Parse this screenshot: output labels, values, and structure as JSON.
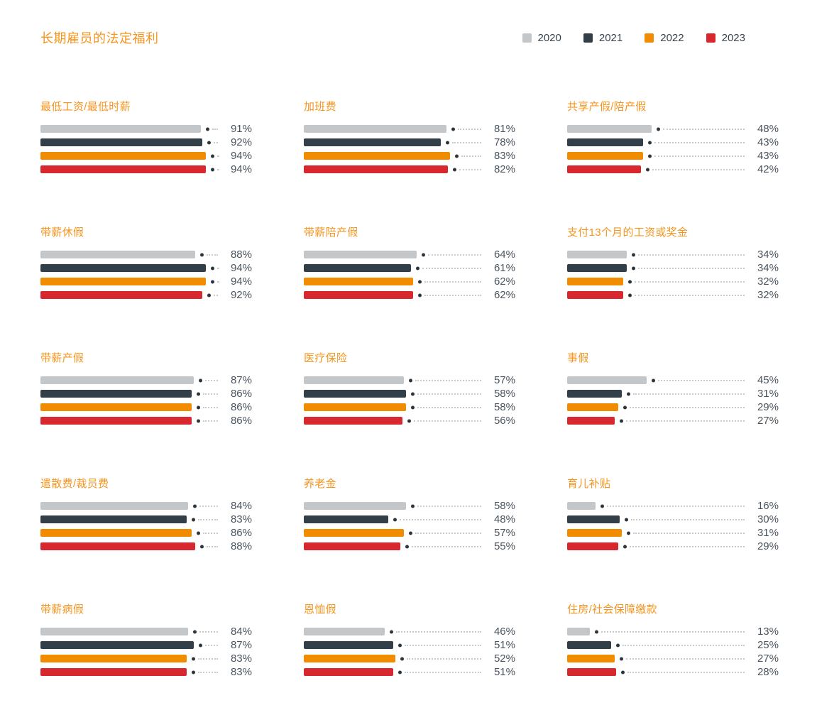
{
  "header": {
    "title": "长期雇员的法定福利"
  },
  "legend": {
    "items": [
      {
        "label": "2020",
        "color": "#c4c7c9"
      },
      {
        "label": "2021",
        "color": "#323e48"
      },
      {
        "label": "2022",
        "color": "#f18b00"
      },
      {
        "label": "2023",
        "color": "#d7282f"
      }
    ]
  },
  "colors": {
    "title_orange": "#f5941e",
    "value_text": "#4a545e",
    "dot": "#2b363f",
    "leader": "#c9cbcd",
    "background": "#ffffff"
  },
  "chart_data": {
    "type": "bar",
    "orientation": "horizontal",
    "title": "长期雇员的法定福利",
    "unit": "%",
    "xlim": [
      0,
      100
    ],
    "grid": false,
    "legend_position": "top-right",
    "series_years": [
      "2020",
      "2021",
      "2022",
      "2023"
    ],
    "panels": [
      {
        "title": "最低工资/最低时薪",
        "values": [
          91,
          92,
          94,
          94
        ],
        "labels": [
          "91%",
          "92%",
          "94%",
          "94%"
        ]
      },
      {
        "title": "加班费",
        "values": [
          81,
          78,
          83,
          82
        ],
        "labels": [
          "81%",
          "78%",
          "83%",
          "82%"
        ]
      },
      {
        "title": "共享产假/陪产假",
        "values": [
          48,
          43,
          43,
          42
        ],
        "labels": [
          "48%",
          "43%",
          "43%",
          "42%"
        ]
      },
      {
        "title": "带薪休假",
        "values": [
          88,
          94,
          94,
          92
        ],
        "labels": [
          "88%",
          "94%",
          "94%",
          "92%"
        ]
      },
      {
        "title": "带薪陪产假",
        "values": [
          64,
          61,
          62,
          62
        ],
        "labels": [
          "64%",
          "61%",
          "62%",
          "62%"
        ]
      },
      {
        "title": "支付13个月的工资或奖金",
        "values": [
          34,
          34,
          32,
          32
        ],
        "labels": [
          "34%",
          "34%",
          "32%",
          "32%"
        ]
      },
      {
        "title": "带薪产假",
        "values": [
          87,
          86,
          86,
          86
        ],
        "labels": [
          "87%",
          "86%",
          "86%",
          "86%"
        ]
      },
      {
        "title": "医疗保险",
        "values": [
          57,
          58,
          58,
          56
        ],
        "labels": [
          "57%",
          "58%",
          "58%",
          "56%"
        ]
      },
      {
        "title": "事假",
        "values": [
          45,
          31,
          29,
          27
        ],
        "labels": [
          "45%",
          "31%",
          "29%",
          "27%"
        ]
      },
      {
        "title": "遣散费/裁员费",
        "values": [
          84,
          83,
          86,
          88
        ],
        "labels": [
          "84%",
          "83%",
          "86%",
          "88%"
        ]
      },
      {
        "title": "养老金",
        "values": [
          58,
          48,
          57,
          55
        ],
        "labels": [
          "58%",
          "48%",
          "57%",
          "55%"
        ]
      },
      {
        "title": "育儿补贴",
        "values": [
          16,
          30,
          31,
          29
        ],
        "labels": [
          "16%",
          "30%",
          "31%",
          "29%"
        ]
      },
      {
        "title": "带薪病假",
        "values": [
          84,
          87,
          83,
          83
        ],
        "labels": [
          "84%",
          "87%",
          "83%",
          "83%"
        ]
      },
      {
        "title": "恩恤假",
        "values": [
          46,
          51,
          52,
          51
        ],
        "labels": [
          "46%",
          "51%",
          "52%",
          "51%"
        ]
      },
      {
        "title": "住房/社会保障缴款",
        "values": [
          13,
          25,
          27,
          28
        ],
        "labels": [
          "13%",
          "25%",
          "27%",
          "28%"
        ]
      }
    ]
  }
}
